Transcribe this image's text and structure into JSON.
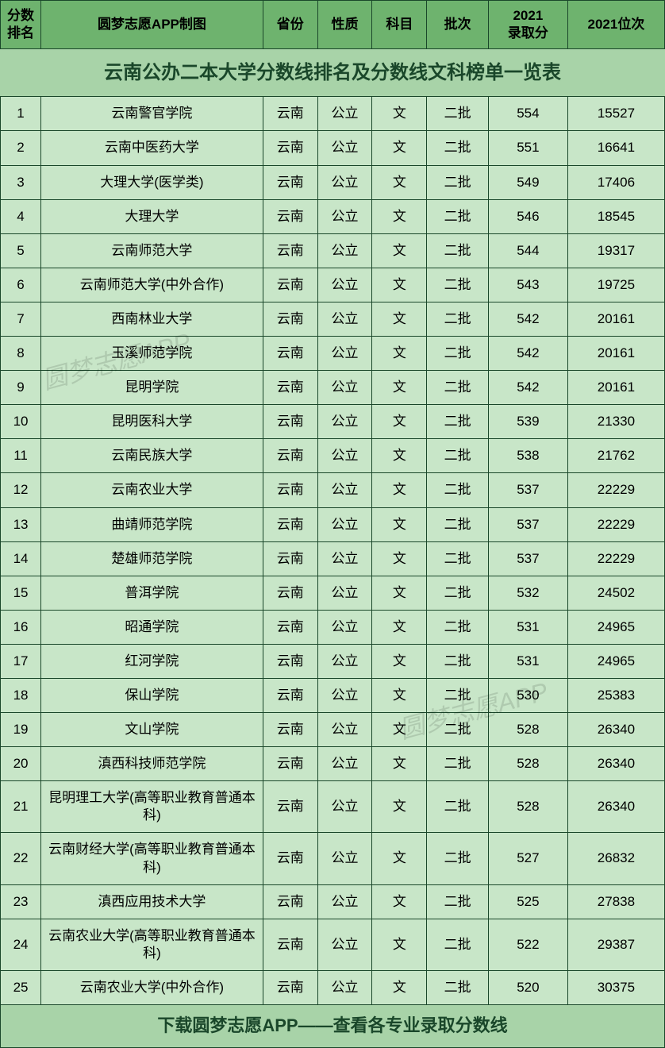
{
  "title": "云南公办二本大学分数线排名及分数线文科榜单一览表",
  "footer": "下载圆梦志愿APP——查看各专业录取分数线",
  "watermark": "圆梦志愿APP",
  "colors": {
    "background": "#a8d3a8",
    "headerBg": "#6eb36e",
    "cellBg": "#c8e6c8",
    "border": "#1a472a",
    "titleText": "#1a472a"
  },
  "columns": [
    {
      "key": "rank",
      "label": "分数\n排名",
      "widthClass": "col-rank"
    },
    {
      "key": "name",
      "label": "圆梦志愿APP制图",
      "widthClass": "col-name"
    },
    {
      "key": "province",
      "label": "省份",
      "widthClass": "col-prov"
    },
    {
      "key": "nature",
      "label": "性质",
      "widthClass": "col-nature"
    },
    {
      "key": "subject",
      "label": "科目",
      "widthClass": "col-subject"
    },
    {
      "key": "batch",
      "label": "批次",
      "widthClass": "col-batch"
    },
    {
      "key": "score",
      "label": "2021\n录取分",
      "widthClass": "col-score"
    },
    {
      "key": "position",
      "label": "2021位次",
      "widthClass": "col-position"
    }
  ],
  "rows": [
    {
      "rank": "1",
      "name": "云南警官学院",
      "province": "云南",
      "nature": "公立",
      "subject": "文",
      "batch": "二批",
      "score": "554",
      "position": "15527"
    },
    {
      "rank": "2",
      "name": "云南中医药大学",
      "province": "云南",
      "nature": "公立",
      "subject": "文",
      "batch": "二批",
      "score": "551",
      "position": "16641"
    },
    {
      "rank": "3",
      "name": "大理大学(医学类)",
      "province": "云南",
      "nature": "公立",
      "subject": "文",
      "batch": "二批",
      "score": "549",
      "position": "17406"
    },
    {
      "rank": "4",
      "name": "大理大学",
      "province": "云南",
      "nature": "公立",
      "subject": "文",
      "batch": "二批",
      "score": "546",
      "position": "18545"
    },
    {
      "rank": "5",
      "name": "云南师范大学",
      "province": "云南",
      "nature": "公立",
      "subject": "文",
      "batch": "二批",
      "score": "544",
      "position": "19317"
    },
    {
      "rank": "6",
      "name": "云南师范大学(中外合作)",
      "province": "云南",
      "nature": "公立",
      "subject": "文",
      "batch": "二批",
      "score": "543",
      "position": "19725"
    },
    {
      "rank": "7",
      "name": "西南林业大学",
      "province": "云南",
      "nature": "公立",
      "subject": "文",
      "batch": "二批",
      "score": "542",
      "position": "20161"
    },
    {
      "rank": "8",
      "name": "玉溪师范学院",
      "province": "云南",
      "nature": "公立",
      "subject": "文",
      "batch": "二批",
      "score": "542",
      "position": "20161"
    },
    {
      "rank": "9",
      "name": "昆明学院",
      "province": "云南",
      "nature": "公立",
      "subject": "文",
      "batch": "二批",
      "score": "542",
      "position": "20161"
    },
    {
      "rank": "10",
      "name": "昆明医科大学",
      "province": "云南",
      "nature": "公立",
      "subject": "文",
      "batch": "二批",
      "score": "539",
      "position": "21330"
    },
    {
      "rank": "11",
      "name": "云南民族大学",
      "province": "云南",
      "nature": "公立",
      "subject": "文",
      "batch": "二批",
      "score": "538",
      "position": "21762"
    },
    {
      "rank": "12",
      "name": "云南农业大学",
      "province": "云南",
      "nature": "公立",
      "subject": "文",
      "batch": "二批",
      "score": "537",
      "position": "22229"
    },
    {
      "rank": "13",
      "name": "曲靖师范学院",
      "province": "云南",
      "nature": "公立",
      "subject": "文",
      "batch": "二批",
      "score": "537",
      "position": "22229"
    },
    {
      "rank": "14",
      "name": "楚雄师范学院",
      "province": "云南",
      "nature": "公立",
      "subject": "文",
      "batch": "二批",
      "score": "537",
      "position": "22229"
    },
    {
      "rank": "15",
      "name": "普洱学院",
      "province": "云南",
      "nature": "公立",
      "subject": "文",
      "batch": "二批",
      "score": "532",
      "position": "24502"
    },
    {
      "rank": "16",
      "name": "昭通学院",
      "province": "云南",
      "nature": "公立",
      "subject": "文",
      "batch": "二批",
      "score": "531",
      "position": "24965"
    },
    {
      "rank": "17",
      "name": "红河学院",
      "province": "云南",
      "nature": "公立",
      "subject": "文",
      "batch": "二批",
      "score": "531",
      "position": "24965"
    },
    {
      "rank": "18",
      "name": "保山学院",
      "province": "云南",
      "nature": "公立",
      "subject": "文",
      "batch": "二批",
      "score": "530",
      "position": "25383"
    },
    {
      "rank": "19",
      "name": "文山学院",
      "province": "云南",
      "nature": "公立",
      "subject": "文",
      "batch": "二批",
      "score": "528",
      "position": "26340"
    },
    {
      "rank": "20",
      "name": "滇西科技师范学院",
      "province": "云南",
      "nature": "公立",
      "subject": "文",
      "batch": "二批",
      "score": "528",
      "position": "26340"
    },
    {
      "rank": "21",
      "name": "昆明理工大学(高等职业教育普通本科)",
      "province": "云南",
      "nature": "公立",
      "subject": "文",
      "batch": "二批",
      "score": "528",
      "position": "26340"
    },
    {
      "rank": "22",
      "name": "云南财经大学(高等职业教育普通本科)",
      "province": "云南",
      "nature": "公立",
      "subject": "文",
      "batch": "二批",
      "score": "527",
      "position": "26832"
    },
    {
      "rank": "23",
      "name": "滇西应用技术大学",
      "province": "云南",
      "nature": "公立",
      "subject": "文",
      "batch": "二批",
      "score": "525",
      "position": "27838"
    },
    {
      "rank": "24",
      "name": "云南农业大学(高等职业教育普通本科)",
      "province": "云南",
      "nature": "公立",
      "subject": "文",
      "batch": "二批",
      "score": "522",
      "position": "29387"
    },
    {
      "rank": "25",
      "name": "云南农业大学(中外合作)",
      "province": "云南",
      "nature": "公立",
      "subject": "文",
      "batch": "二批",
      "score": "520",
      "position": "30375"
    }
  ]
}
